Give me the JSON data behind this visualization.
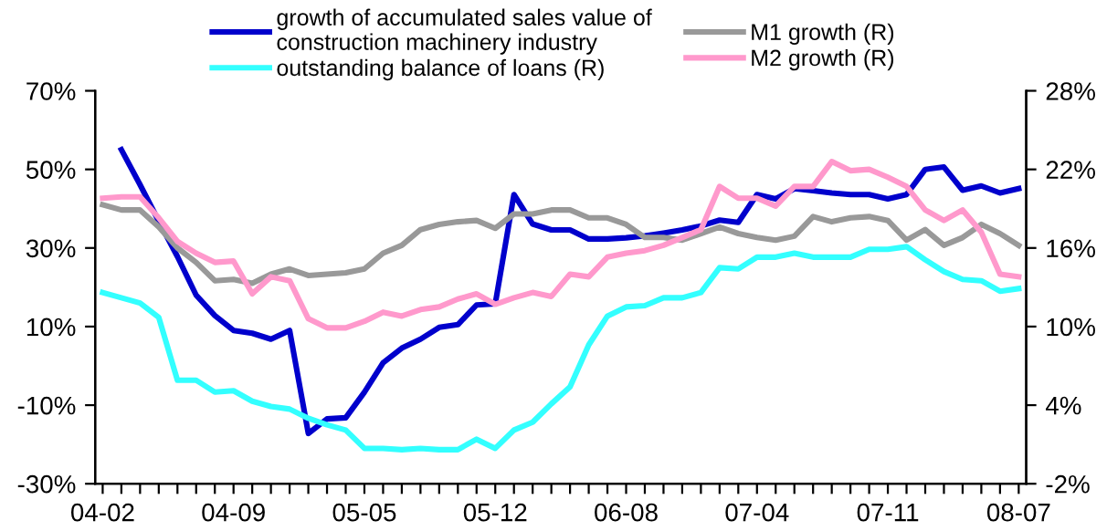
{
  "chart_data": {
    "type": "line",
    "categories": [
      "04-02",
      null,
      null,
      null,
      null,
      null,
      null,
      "04-09",
      null,
      null,
      null,
      null,
      null,
      null,
      "05-05",
      null,
      null,
      null,
      null,
      null,
      null,
      "05-12",
      null,
      null,
      null,
      null,
      null,
      null,
      "06-08",
      null,
      null,
      null,
      null,
      null,
      null,
      "07-04",
      null,
      null,
      null,
      null,
      null,
      null,
      "07-11",
      null,
      null,
      null,
      null,
      null,
      null,
      "08-07"
    ],
    "series": [
      {
        "name": "growth of accumulated sales value of\nconstruction machinery industry",
        "color": "#0000cc",
        "values": [
          null,
          55,
          46.1,
          36.8,
          27.8,
          18,
          12.8,
          9.0,
          8.3,
          6.8,
          9.0,
          -17.2,
          -13.5,
          -13.2,
          -6.7,
          0.8,
          4.5,
          6.8,
          9.8,
          10.5,
          15.5,
          15.8,
          43.6,
          36.1,
          34.6,
          34.6,
          32.3,
          32.3,
          32.6,
          33.1,
          33.8,
          34.6,
          35.6,
          37.1,
          36.5,
          43.6,
          42.5,
          45.1,
          44.6,
          44.0,
          43.6,
          43.6,
          42.5,
          43.6,
          50.0,
          50.6,
          44.7,
          45.8,
          44.0,
          45.1
        ]
      },
      {
        "name": "outstanding balance of loans (R)",
        "color": "#33ffff",
        "axis": "y2",
        "values": [
          12.6,
          12.2,
          11.8,
          10.7,
          5.9,
          5.9,
          5.0,
          5.1,
          4.3,
          3.9,
          3.7,
          3.0,
          2.5,
          2.1,
          0.7,
          0.7,
          0.6,
          0.7,
          0.6,
          0.6,
          1.4,
          0.7,
          2.1,
          2.7,
          4.1,
          5.4,
          8.6,
          10.8,
          11.5,
          11.6,
          12.2,
          12.2,
          12.6,
          14.5,
          14.4,
          15.3,
          15.3,
          15.6,
          15.3,
          15.3,
          15.3,
          15.9,
          15.9,
          16.1,
          15.1,
          14.2,
          13.6,
          13.5,
          12.7,
          12.9
        ]
      },
      {
        "name": "M1 growth (R)",
        "color": "#999999",
        "axis": "y2",
        "values": [
          19.3,
          18.9,
          18.9,
          17.6,
          16.0,
          14.9,
          13.5,
          13.6,
          13.3,
          14.0,
          14.4,
          13.9,
          14.0,
          14.1,
          14.4,
          15.6,
          16.2,
          17.4,
          17.8,
          18.0,
          18.1,
          17.5,
          18.6,
          18.6,
          18.9,
          18.9,
          18.3,
          18.3,
          17.8,
          16.8,
          16.8,
          16.6,
          17.1,
          17.6,
          17.1,
          16.8,
          16.6,
          16.9,
          18.4,
          18.0,
          18.3,
          18.4,
          18.1,
          16.6,
          17.4,
          16.2,
          16.8,
          17.8,
          17.1,
          16.2
        ]
      },
      {
        "name": "M2 growth (R)",
        "color": "#ff99cc",
        "axis": "y2",
        "values": [
          19.8,
          19.9,
          19.9,
          18.3,
          16.5,
          15.6,
          14.9,
          15.0,
          12.5,
          13.8,
          13.5,
          10.6,
          9.9,
          9.9,
          10.4,
          11.1,
          10.8,
          11.3,
          11.5,
          12.1,
          12.5,
          11.7,
          12.2,
          12.6,
          12.3,
          14.0,
          13.8,
          15.3,
          15.6,
          15.8,
          16.2,
          16.8,
          17.4,
          20.7,
          19.8,
          19.8,
          19.2,
          20.7,
          20.7,
          22.6,
          21.9,
          22.0,
          21.4,
          20.7,
          18.9,
          18.1,
          18.9,
          17.2,
          14.0,
          13.8
        ]
      }
    ],
    "ylim": [
      -30,
      70
    ],
    "yticks": [
      {
        "value": -30,
        "label": "-30%"
      },
      {
        "value": -10,
        "label": "-10%"
      },
      {
        "value": 10,
        "label": "10%"
      },
      {
        "value": 30,
        "label": "30%"
      },
      {
        "value": 50,
        "label": "50%"
      },
      {
        "value": 70,
        "label": "70%"
      }
    ],
    "y2lim": [
      -2,
      28
    ],
    "y2ticks": [
      {
        "value": -2,
        "label": "-2%"
      },
      {
        "value": 4,
        "label": "4%"
      },
      {
        "value": 10,
        "label": "10%"
      },
      {
        "value": 16,
        "label": "16%"
      },
      {
        "value": 22,
        "label": "22%"
      },
      {
        "value": 28,
        "label": "28%"
      }
    ],
    "legend": "top",
    "grid": false,
    "marker": "none",
    "line_style": "solid"
  }
}
